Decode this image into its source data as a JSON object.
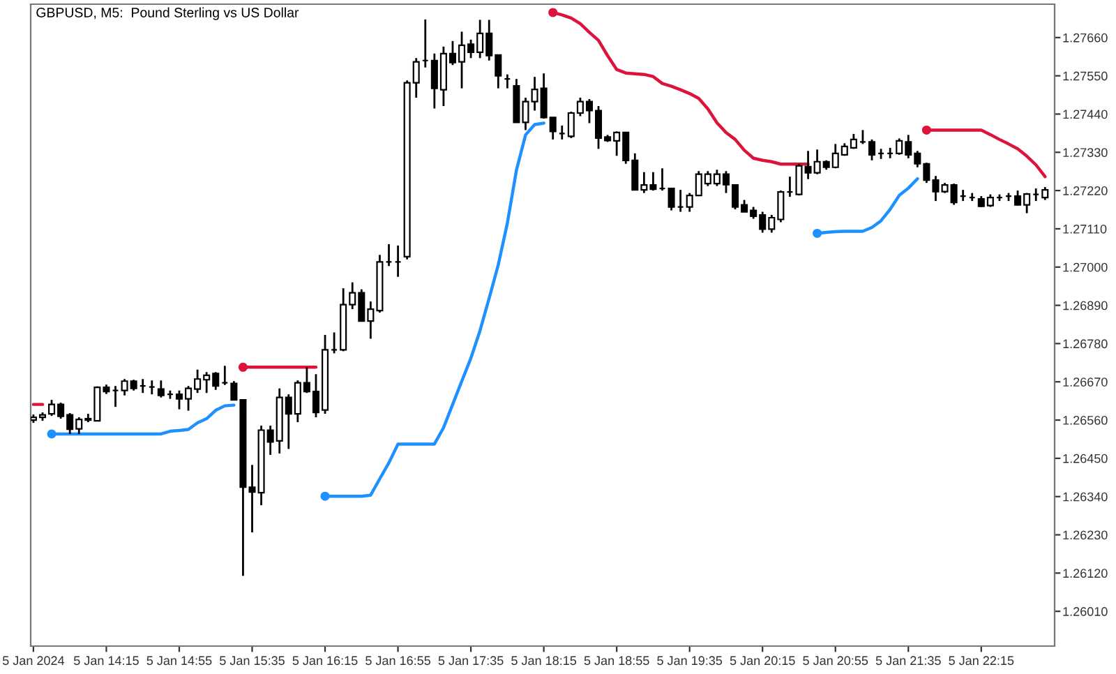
{
  "chart_data": {
    "type": "candlestick",
    "title": "GBPUSD, M5:  Pound Sterling vs US Dollar",
    "categories": [
      "5 Jan 2024",
      null,
      null,
      null,
      null,
      null,
      null,
      null,
      "5 Jan 14:15",
      null,
      null,
      null,
      null,
      null,
      null,
      null,
      "5 Jan 14:55",
      null,
      null,
      null,
      null,
      null,
      null,
      null,
      "5 Jan 15:35",
      null,
      null,
      null,
      null,
      null,
      null,
      null,
      "5 Jan 16:15",
      null,
      null,
      null,
      null,
      null,
      null,
      null,
      "5 Jan 16:55",
      null,
      null,
      null,
      null,
      null,
      null,
      null,
      "5 Jan 17:35",
      null,
      null,
      null,
      null,
      null,
      null,
      null,
      "5 Jan 18:15",
      null,
      null,
      null,
      null,
      null,
      null,
      null,
      "5 Jan 18:55",
      null,
      null,
      null,
      null,
      null,
      null,
      null,
      "5 Jan 19:35",
      null,
      null,
      null,
      null,
      null,
      null,
      null,
      "5 Jan 20:15",
      null,
      null,
      null,
      null,
      null,
      null,
      null,
      "5 Jan 20:55",
      null,
      null,
      null,
      null,
      null,
      null,
      null,
      "5 Jan 21:35",
      null,
      null,
      null,
      null,
      null,
      null,
      null,
      "5 Jan 22:15",
      null,
      null,
      null,
      null,
      null,
      null,
      null
    ],
    "ohlc": [
      [
        1.2656,
        1.26576,
        1.26552,
        1.26568
      ],
      [
        1.26568,
        1.26582,
        1.26558,
        1.26575
      ],
      [
        1.26578,
        1.26618,
        1.26572,
        1.26605
      ],
      [
        1.26605,
        1.2661,
        1.26564,
        1.26571
      ],
      [
        1.26575,
        1.2658,
        1.2652,
        1.26534
      ],
      [
        1.26535,
        1.26568,
        1.2652,
        1.26562
      ],
      [
        1.2656,
        1.26578,
        1.26554,
        1.26564
      ],
      [
        1.26558,
        1.26657,
        1.26556,
        1.26654
      ],
      [
        1.26654,
        1.26662,
        1.26635,
        1.26642
      ],
      [
        1.26645,
        1.26658,
        1.26598,
        1.26645
      ],
      [
        1.26645,
        1.26678,
        1.26631,
        1.26672
      ],
      [
        1.26672,
        1.26676,
        1.26645,
        1.26651
      ],
      [
        1.26658,
        1.26678,
        1.26638,
        1.26658
      ],
      [
        1.26655,
        1.26674,
        1.26634,
        1.26655
      ],
      [
        1.26649,
        1.26674,
        1.26625,
        1.26631
      ],
      [
        1.26634,
        1.26645,
        1.26621,
        1.26634
      ],
      [
        1.26634,
        1.26645,
        1.26591,
        1.26621
      ],
      [
        1.26621,
        1.26658,
        1.26587,
        1.26651
      ],
      [
        1.26649,
        1.26705,
        1.26638,
        1.26678
      ],
      [
        1.26676,
        1.26698,
        1.26638,
        1.26689
      ],
      [
        1.26694,
        1.26698,
        1.26647,
        1.26658
      ],
      [
        1.26667,
        1.26716,
        1.26661,
        1.26667
      ],
      [
        1.26665,
        1.26672,
        1.26618,
        1.26618
      ],
      [
        1.26618,
        1.26618,
        1.26112,
        1.26367
      ],
      [
        1.26367,
        1.26431,
        1.26237,
        1.26353
      ],
      [
        1.26351,
        1.26544,
        1.26315,
        1.26531
      ],
      [
        1.26531,
        1.26544,
        1.2646,
        1.26497
      ],
      [
        1.265,
        1.26651,
        1.26464,
        1.26625
      ],
      [
        1.26625,
        1.26634,
        1.26477,
        1.26578
      ],
      [
        1.26578,
        1.26674,
        1.26554,
        1.26667
      ],
      [
        1.26667,
        1.26712,
        1.26638,
        1.26642
      ],
      [
        1.26642,
        1.26692,
        1.26568,
        1.26582
      ],
      [
        1.26589,
        1.26805,
        1.26578,
        1.26762
      ],
      [
        1.26762,
        1.26812,
        1.26752,
        1.26762
      ],
      [
        1.26762,
        1.26939,
        1.26758,
        1.26892
      ],
      [
        1.26892,
        1.26956,
        1.26879,
        1.26926
      ],
      [
        1.26926,
        1.26936,
        1.26845,
        1.26845
      ],
      [
        1.26845,
        1.26901,
        1.26794,
        1.26879
      ],
      [
        1.26875,
        1.27035,
        1.26869,
        1.27015
      ],
      [
        1.27015,
        1.27066,
        1.27003,
        1.27015
      ],
      [
        1.27015,
        1.27062,
        1.26972,
        1.27015
      ],
      [
        1.2703,
        1.27537,
        1.27022,
        1.2753
      ],
      [
        1.2753,
        1.27601,
        1.27487,
        1.2759
      ],
      [
        1.27594,
        1.27712,
        1.27574,
        1.27594
      ],
      [
        1.27594,
        1.27614,
        1.27456,
        1.27514
      ],
      [
        1.2751,
        1.27634,
        1.27463,
        1.27614
      ],
      [
        1.27614,
        1.2765,
        1.27581,
        1.27588
      ],
      [
        1.2759,
        1.27677,
        1.27514,
        1.27638
      ],
      [
        1.27641,
        1.27654,
        1.27601,
        1.27618
      ],
      [
        1.27618,
        1.27711,
        1.27601,
        1.27672
      ],
      [
        1.27672,
        1.27711,
        1.27594,
        1.27608
      ],
      [
        1.2761,
        1.2761,
        1.27514,
        1.2755
      ],
      [
        1.27541,
        1.27554,
        1.27514,
        1.27541
      ],
      [
        1.27521,
        1.27541,
        1.27416,
        1.27416
      ],
      [
        1.27416,
        1.27487,
        1.27394,
        1.27476
      ],
      [
        1.27476,
        1.27547,
        1.2745,
        1.27511
      ],
      [
        1.27514,
        1.27557,
        1.27427,
        1.2743
      ],
      [
        1.2743,
        1.2743,
        1.27367,
        1.2739
      ],
      [
        1.27384,
        1.27407,
        1.27367,
        1.27384
      ],
      [
        1.27376,
        1.27447,
        1.27371,
        1.27443
      ],
      [
        1.27443,
        1.27487,
        1.27434,
        1.27476
      ],
      [
        1.27476,
        1.27483,
        1.27414,
        1.2745
      ],
      [
        1.2745,
        1.27463,
        1.2734,
        1.27371
      ],
      [
        1.27374,
        1.2738,
        1.2736,
        1.27364
      ],
      [
        1.27363,
        1.2739,
        1.2732,
        1.27387
      ],
      [
        1.27387,
        1.27387,
        1.27297,
        1.27307
      ],
      [
        1.27307,
        1.27327,
        1.27222,
        1.27222
      ],
      [
        1.27222,
        1.27273,
        1.27213,
        1.27236
      ],
      [
        1.27236,
        1.27273,
        1.2722,
        1.27224
      ],
      [
        1.27226,
        1.27284,
        1.2722,
        1.27226
      ],
      [
        1.27226,
        1.27226,
        1.27163,
        1.27173
      ],
      [
        1.27173,
        1.27222,
        1.27159,
        1.27173
      ],
      [
        1.27173,
        1.27213,
        1.27159,
        1.27206
      ],
      [
        1.27206,
        1.27276,
        1.27204,
        1.27267
      ],
      [
        1.2724,
        1.27276,
        1.27233,
        1.27267
      ],
      [
        1.2724,
        1.2728,
        1.27233,
        1.27267
      ],
      [
        1.27267,
        1.27276,
        1.27213,
        1.27237
      ],
      [
        1.27236,
        1.27236,
        1.27166,
        1.27173
      ],
      [
        1.27179,
        1.27193,
        1.27159,
        1.27159
      ],
      [
        1.27163,
        1.27173,
        1.27139,
        1.27146
      ],
      [
        1.2715,
        1.27159,
        1.27099,
        1.27109
      ],
      [
        1.27109,
        1.2715,
        1.27099,
        1.27142
      ],
      [
        1.27137,
        1.2722,
        1.27129,
        1.27216
      ],
      [
        1.27216,
        1.2726,
        1.27202,
        1.27216
      ],
      [
        1.27209,
        1.27297,
        1.27206,
        1.27291
      ],
      [
        1.27289,
        1.27334,
        1.27253,
        1.27271
      ],
      [
        1.27271,
        1.27338,
        1.27267,
        1.27303
      ],
      [
        1.27303,
        1.27307,
        1.2728,
        1.27287
      ],
      [
        1.27287,
        1.27354,
        1.27284,
        1.27327
      ],
      [
        1.27323,
        1.27356,
        1.2732,
        1.27347
      ],
      [
        1.27343,
        1.27383,
        1.2734,
        1.27367
      ],
      [
        1.2736,
        1.27394,
        1.27354,
        1.2736
      ],
      [
        1.2736,
        1.27367,
        1.27307,
        1.27323
      ],
      [
        1.27327,
        1.2734,
        1.27311,
        1.27327
      ],
      [
        1.27327,
        1.27343,
        1.27313,
        1.27327
      ],
      [
        1.27327,
        1.2737,
        1.27323,
        1.27363
      ],
      [
        1.2736,
        1.2738,
        1.27313,
        1.27323
      ],
      [
        1.27327,
        1.27334,
        1.27287,
        1.27297
      ],
      [
        1.27297,
        1.273,
        1.27242,
        1.2725
      ],
      [
        1.2725,
        1.27262,
        1.2719,
        1.27217
      ],
      [
        1.27217,
        1.27242,
        1.27213,
        1.27236
      ],
      [
        1.27236,
        1.2724,
        1.27179,
        1.27186
      ],
      [
        1.27204,
        1.27222,
        1.2719,
        1.27204
      ],
      [
        1.272,
        1.27213,
        1.2719,
        1.272
      ],
      [
        1.27196,
        1.27204,
        1.27173,
        1.27175
      ],
      [
        1.27177,
        1.27209,
        1.27173,
        1.272
      ],
      [
        1.272,
        1.27209,
        1.2719,
        1.272
      ],
      [
        1.27204,
        1.27213,
        1.2719,
        1.27204
      ],
      [
        1.27204,
        1.2722,
        1.27177,
        1.27179
      ],
      [
        1.27179,
        1.27213,
        1.27155,
        1.2721
      ],
      [
        1.27209,
        1.27226,
        1.2719,
        1.27209
      ],
      [
        1.272,
        1.2723,
        1.27193,
        1.27222
      ]
    ],
    "series": [
      {
        "type": "line",
        "color": "#dc143c",
        "values": [
          1.26605,
          1.26605,
          null,
          null,
          null,
          null,
          null,
          null,
          null,
          null,
          null,
          null,
          null,
          null,
          null,
          null,
          null,
          null,
          null,
          null,
          null,
          null,
          null,
          1.26712,
          1.26712,
          1.26712,
          1.26712,
          1.26712,
          1.26712,
          1.26712,
          1.26712,
          1.26712,
          null,
          null,
          null,
          null,
          null,
          null,
          null,
          null,
          null,
          null,
          null,
          null,
          null,
          null,
          null,
          null,
          null,
          null,
          null,
          null,
          null,
          null,
          null,
          null,
          null,
          1.27732,
          1.27725,
          1.27716,
          1.277,
          1.27675,
          1.27652,
          1.27608,
          1.27568,
          1.27558,
          1.27556,
          1.27554,
          1.27548,
          1.27528,
          1.2752,
          1.2751,
          1.27499,
          1.27485,
          1.27455,
          1.27415,
          1.27387,
          1.27367,
          1.27336,
          1.27313,
          1.27307,
          1.27303,
          1.27296,
          1.27296,
          1.27296,
          1.27296,
          null,
          null,
          null,
          null,
          null,
          null,
          null,
          null,
          null,
          null,
          null,
          null,
          1.27394,
          1.27394,
          1.27394,
          1.27394,
          1.27394,
          1.27394,
          1.27394,
          1.27381,
          1.27367,
          1.27354,
          1.2734,
          1.27319,
          1.27294,
          1.2726
        ]
      },
      {
        "type": "line",
        "color": "#1e90ff",
        "values": [
          null,
          null,
          1.2652,
          1.2652,
          1.2652,
          1.2652,
          1.2652,
          1.2652,
          1.2652,
          1.2652,
          1.2652,
          1.2652,
          1.2652,
          1.2652,
          1.2652,
          1.26528,
          1.2653,
          1.26533,
          1.26552,
          1.26564,
          1.26588,
          1.26601,
          1.26603,
          null,
          null,
          null,
          null,
          null,
          null,
          null,
          null,
          null,
          1.26341,
          1.26341,
          1.26341,
          1.26341,
          1.26341,
          1.26344,
          1.26391,
          1.26437,
          1.26491,
          1.26491,
          1.26491,
          1.26491,
          1.26491,
          1.26538,
          1.26605,
          1.26672,
          1.26738,
          1.26817,
          1.2691,
          1.27006,
          1.27126,
          1.27279,
          1.2738,
          1.2741,
          1.27414,
          null,
          null,
          null,
          null,
          null,
          null,
          null,
          null,
          null,
          null,
          null,
          null,
          null,
          null,
          null,
          null,
          null,
          null,
          null,
          null,
          null,
          null,
          null,
          null,
          null,
          null,
          null,
          null,
          null,
          1.27097,
          1.271,
          1.27102,
          1.27103,
          1.27103,
          1.27103,
          1.27114,
          1.27133,
          1.27166,
          1.27206,
          1.27227,
          1.27254,
          null,
          null,
          null,
          null,
          null,
          null,
          null,
          null,
          null,
          null,
          null,
          null,
          null,
          null
        ]
      },
      {
        "type": "scatter",
        "color": "#dc143c",
        "values": [
          null,
          null,
          null,
          null,
          null,
          null,
          null,
          null,
          null,
          null,
          null,
          null,
          null,
          null,
          null,
          null,
          null,
          null,
          null,
          null,
          null,
          null,
          null,
          1.26712,
          null,
          null,
          null,
          null,
          null,
          null,
          null,
          null,
          null,
          null,
          null,
          null,
          null,
          null,
          null,
          null,
          null,
          null,
          null,
          null,
          null,
          null,
          null,
          null,
          null,
          null,
          null,
          null,
          null,
          null,
          null,
          null,
          null,
          1.27732,
          null,
          null,
          null,
          null,
          null,
          null,
          null,
          null,
          null,
          null,
          null,
          null,
          null,
          null,
          null,
          null,
          null,
          null,
          null,
          null,
          null,
          null,
          null,
          null,
          null,
          null,
          null,
          null,
          null,
          null,
          null,
          null,
          null,
          null,
          null,
          null,
          null,
          null,
          null,
          null,
          1.27394,
          null,
          null,
          null,
          null,
          null,
          null,
          null,
          null,
          null,
          null,
          null,
          null,
          null
        ]
      },
      {
        "type": "scatter",
        "color": "#1e90ff",
        "values": [
          null,
          null,
          1.2652,
          null,
          null,
          null,
          null,
          null,
          null,
          null,
          null,
          null,
          null,
          null,
          null,
          null,
          null,
          null,
          null,
          null,
          null,
          null,
          null,
          null,
          null,
          null,
          null,
          null,
          null,
          null,
          null,
          null,
          1.26341,
          null,
          null,
          null,
          null,
          null,
          null,
          null,
          null,
          null,
          null,
          null,
          null,
          null,
          null,
          null,
          null,
          null,
          null,
          null,
          null,
          null,
          null,
          null,
          null,
          null,
          null,
          null,
          null,
          null,
          null,
          null,
          null,
          null,
          null,
          null,
          null,
          null,
          null,
          null,
          null,
          null,
          null,
          null,
          null,
          null,
          null,
          null,
          null,
          null,
          null,
          null,
          null,
          null,
          1.27097,
          null,
          null,
          null,
          null,
          null,
          null,
          null,
          null,
          null,
          null,
          null,
          null,
          null,
          null,
          null,
          null,
          null,
          null,
          null,
          null,
          null,
          null,
          null,
          null,
          null
        ]
      }
    ],
    "ylim": [
      1.2591,
      1.27756
    ],
    "yticks": [
      {
        "value": 1.2601,
        "label": "1.26010"
      },
      {
        "value": 1.2612,
        "label": "1.26120"
      },
      {
        "value": 1.2623,
        "label": "1.26230"
      },
      {
        "value": 1.2634,
        "label": "1.26340"
      },
      {
        "value": 1.2645,
        "label": "1.26450"
      },
      {
        "value": 1.2656,
        "label": "1.26560"
      },
      {
        "value": 1.2667,
        "label": "1.26670"
      },
      {
        "value": 1.2678,
        "label": "1.26780"
      },
      {
        "value": 1.2689,
        "label": "1.26890"
      },
      {
        "value": 1.27,
        "label": "1.27000"
      },
      {
        "value": 1.2711,
        "label": "1.27110"
      },
      {
        "value": 1.2722,
        "label": "1.27220"
      },
      {
        "value": 1.2733,
        "label": "1.27330"
      },
      {
        "value": 1.2744,
        "label": "1.27440"
      },
      {
        "value": 1.2755,
        "label": "1.27550"
      },
      {
        "value": 1.2766,
        "label": "1.27660"
      }
    ],
    "grid": false
  }
}
